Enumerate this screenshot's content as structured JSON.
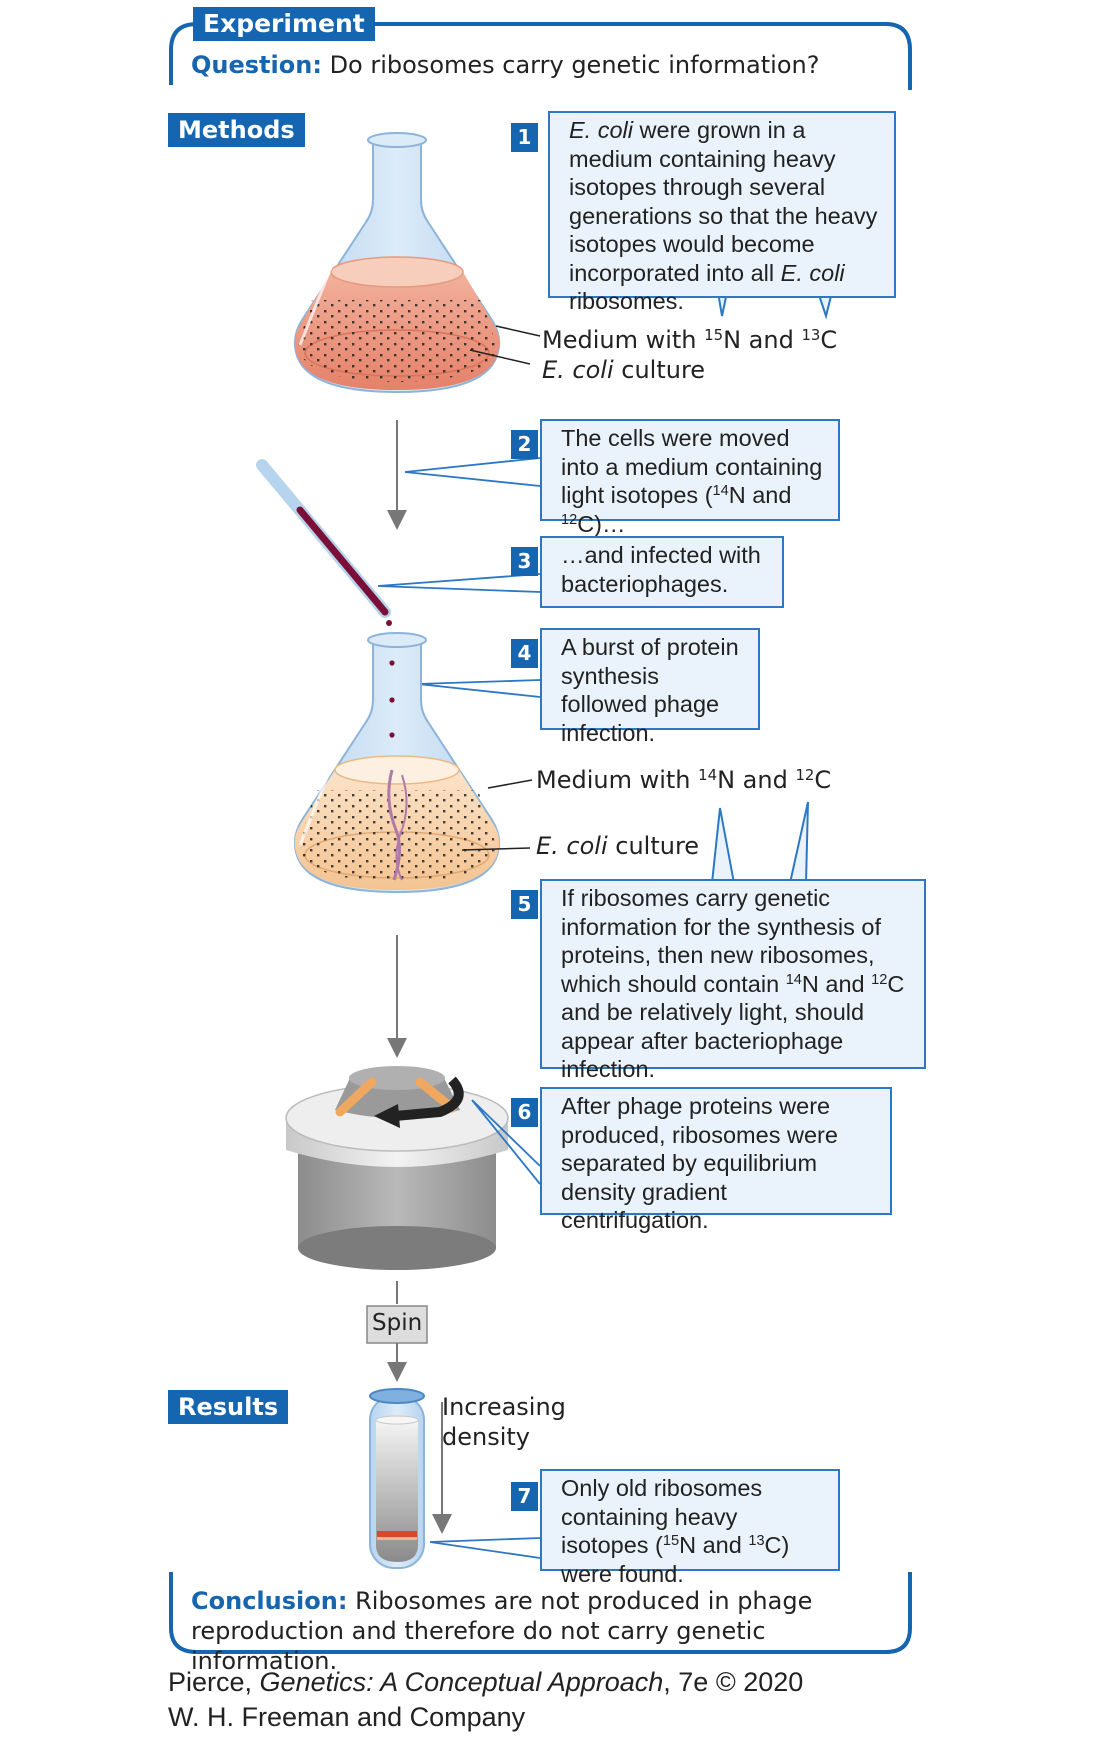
{
  "header": {
    "experiment_label": "Experiment",
    "question_label": "Question:",
    "question_text": "Do ribosomes carry genetic information?"
  },
  "sections": {
    "methods_label": "Methods",
    "results_label": "Results"
  },
  "steps": [
    {
      "num": "1",
      "text_html": "<span class=\"it\">E. coli</span> were grown in a medium containing heavy isotopes through several generations so that the heavy isotopes would become incorporated into all <span class=\"it\">E. coli</span> ribosomes."
    },
    {
      "num": "2",
      "text_html": "The cells were moved into a medium containing light isotopes (<sup>14</sup>N and <sup>12</sup>C)…"
    },
    {
      "num": "3",
      "text_html": "…and infected with bacteriophages."
    },
    {
      "num": "4",
      "text_html": "A burst of protein synthesis followed phage infection."
    },
    {
      "num": "5",
      "text_html": "If ribosomes carry genetic information for the synthesis of proteins, then new ribosomes, which should contain <sup>14</sup>N and <sup>12</sup>C and be relatively light, should appear after bacteriophage infection."
    },
    {
      "num": "6",
      "text_html": "After phage proteins were produced, ribosomes were separated by equilibrium density gradient centrifugation."
    },
    {
      "num": "7",
      "text_html": "Only old ribosomes containing heavy isotopes (<sup>15</sup>N and <sup>13</sup>C) were found."
    }
  ],
  "labels": {
    "flask1_medium_html": "Medium with <sup>15</sup>N and <sup>13</sup>C",
    "flask1_culture_html": "<span class=\"it\">E. coli</span> culture",
    "flask2_medium_html": "Medium with <sup>14</sup>N and <sup>12</sup>C",
    "flask2_culture_html": "<span class=\"it\">E. coli</span> culture",
    "spin": "Spin",
    "density_line1": "Increasing",
    "density_line2": "density"
  },
  "conclusion": {
    "label": "Conclusion:",
    "text": "Ribosomes are not produced in phage reproduction and therefore do not carry genetic information."
  },
  "credit": {
    "line1_pre": "Pierce, ",
    "line1_title": "Genetics: A Conceptual Approach",
    "line1_post": ", 7e © 2020",
    "line2": "W. H. Freeman and Company"
  },
  "colors": {
    "accent_blue": "#1565b0",
    "box_fill": "#eaf3fc",
    "box_border": "#2c78c4",
    "heavy_medium": "#e8907a",
    "light_medium": "#f6cfa4",
    "phage_purple": "#7a1038"
  },
  "icons": [
    "flask-heavy",
    "pipette",
    "flask-light",
    "centrifuge",
    "tube-gradient",
    "arrow-down"
  ]
}
